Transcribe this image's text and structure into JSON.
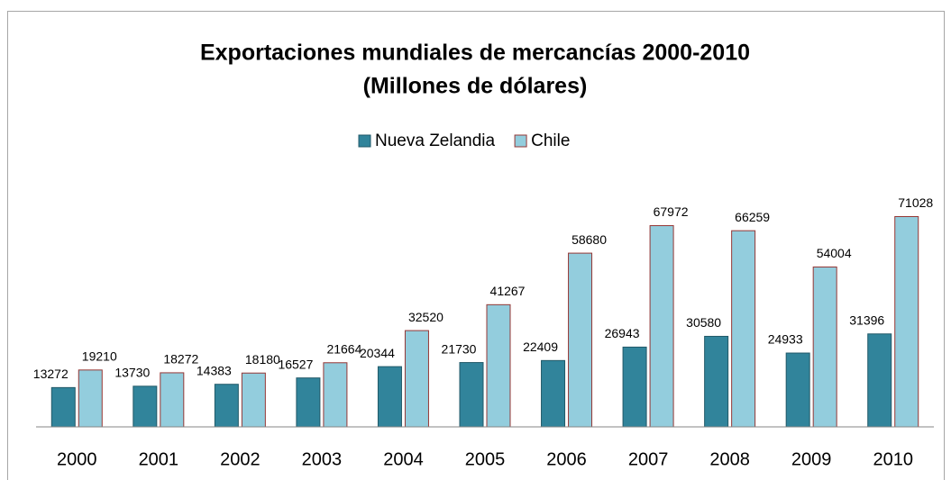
{
  "chart_data": {
    "type": "bar",
    "title": "Exportaciones mundiales de mercancías 2000-2010",
    "subtitle": "(Millones de dólares)",
    "categories": [
      "2000",
      "2001",
      "2002",
      "2003",
      "2004",
      "2005",
      "2006",
      "2007",
      "2008",
      "2009",
      "2010"
    ],
    "series": [
      {
        "name": "Nueva Zelandia",
        "color": "#31849b",
        "edgecolor": "#215968",
        "values": [
          13272,
          13730,
          14383,
          16527,
          20344,
          21730,
          22409,
          26943,
          30580,
          24933,
          31396
        ]
      },
      {
        "name": "Chile",
        "color": "#93cddd",
        "edgecolor": "#953735",
        "values": [
          19210,
          18272,
          18180,
          21664,
          32520,
          41267,
          58680,
          67972,
          66259,
          54004,
          71028
        ]
      }
    ],
    "ylim": [
      0,
      80000
    ],
    "legend": "top",
    "grid": false
  }
}
